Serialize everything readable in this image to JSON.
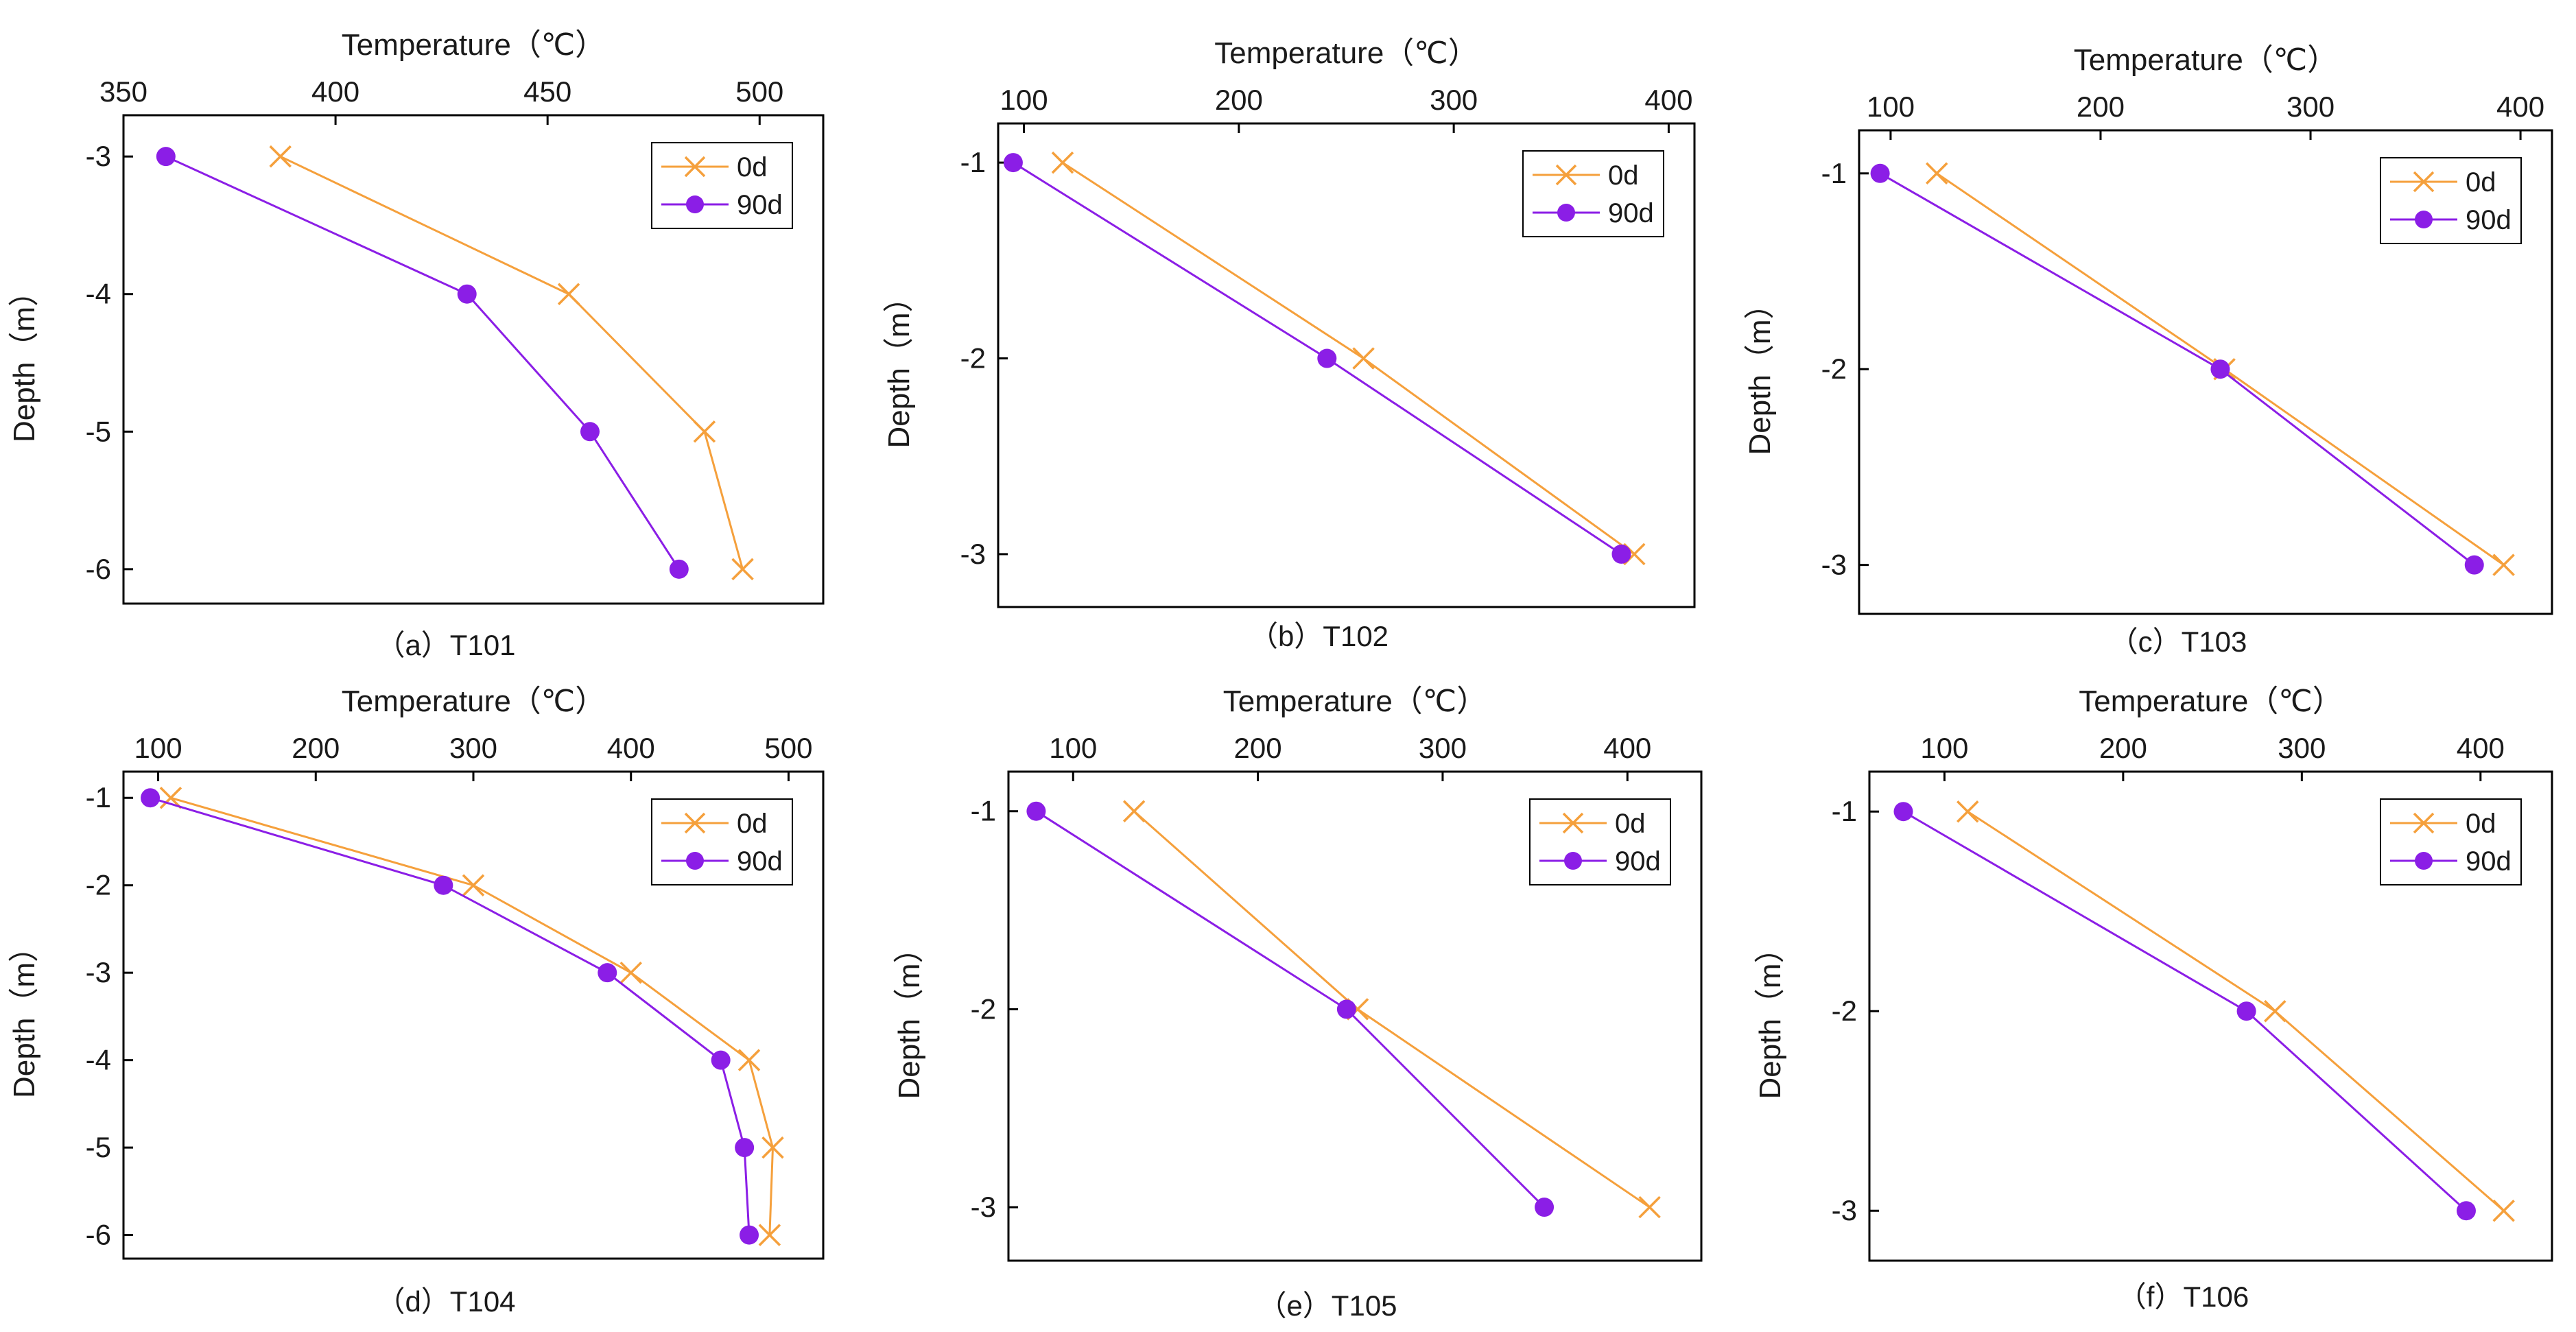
{
  "colors": {
    "s0d": "#f5a03c",
    "s90d": "#8b1ee6",
    "axis": "#000000",
    "text": "#1a1a1a"
  },
  "chart_data": [
    {
      "type": "line",
      "title": "(a) T101",
      "caption": "（a）T101",
      "xlabel": "Temperature（℃）",
      "ylabel": "Depth（m）",
      "xlim": [
        350,
        515
      ],
      "ylim": [
        -6.25,
        -2.7
      ],
      "xticks": [
        350,
        400,
        450,
        500
      ],
      "yticks": [
        -3,
        -4,
        -5,
        -6
      ],
      "legend_position": "top-right",
      "series": [
        {
          "name": "0d",
          "marker": "x",
          "points": [
            [
              387,
              -3
            ],
            [
              455,
              -4
            ],
            [
              487,
              -5
            ],
            [
              496,
              -6
            ]
          ]
        },
        {
          "name": "90d",
          "marker": "circle",
          "points": [
            [
              360,
              -3
            ],
            [
              431,
              -4
            ],
            [
              460,
              -5
            ],
            [
              481,
              -6
            ]
          ]
        }
      ]
    },
    {
      "type": "line",
      "title": "(b) T102",
      "caption": "（b）T102",
      "xlabel": "Temperature（℃）",
      "ylabel": "Depth（m）",
      "xlim": [
        88,
        412
      ],
      "ylim": [
        -3.27,
        -0.8
      ],
      "xticks": [
        100,
        200,
        300,
        400
      ],
      "yticks": [
        -1,
        -2,
        -3
      ],
      "legend_position": "top-right",
      "series": [
        {
          "name": "0d",
          "marker": "x",
          "points": [
            [
              118,
              -1
            ],
            [
              258,
              -2
            ],
            [
              384,
              -3
            ]
          ]
        },
        {
          "name": "90d",
          "marker": "circle",
          "points": [
            [
              95,
              -1
            ],
            [
              241,
              -2
            ],
            [
              378,
              -3
            ]
          ]
        }
      ]
    },
    {
      "type": "line",
      "title": "(c) T103",
      "caption": "（c）T103",
      "xlabel": "Temperature（℃）",
      "ylabel": "Depth（m）",
      "xlim": [
        85,
        415
      ],
      "ylim": [
        -3.25,
        -0.78
      ],
      "xticks": [
        100,
        200,
        300,
        400
      ],
      "yticks": [
        -1,
        -2,
        -3
      ],
      "legend_position": "top-right",
      "series": [
        {
          "name": "0d",
          "marker": "x",
          "points": [
            [
              122,
              -1
            ],
            [
              259,
              -2
            ],
            [
              392,
              -3
            ]
          ]
        },
        {
          "name": "90d",
          "marker": "circle",
          "points": [
            [
              95,
              -1
            ],
            [
              257,
              -2
            ],
            [
              378,
              -3
            ]
          ]
        }
      ]
    },
    {
      "type": "line",
      "title": "(d) T104",
      "caption": "（d）T104",
      "xlabel": "Temperature（℃）",
      "ylabel": "Depth（m）",
      "xlim": [
        78,
        522
      ],
      "ylim": [
        -6.27,
        -0.7
      ],
      "xticks": [
        100,
        200,
        300,
        400,
        500
      ],
      "yticks": [
        -1,
        -2,
        -3,
        -4,
        -5,
        -6
      ],
      "legend_position": "top-right",
      "series": [
        {
          "name": "0d",
          "marker": "x",
          "points": [
            [
              108,
              -1
            ],
            [
              300,
              -2
            ],
            [
              400,
              -3
            ],
            [
              475,
              -4
            ],
            [
              490,
              -5
            ],
            [
              488,
              -6
            ]
          ]
        },
        {
          "name": "90d",
          "marker": "circle",
          "points": [
            [
              95,
              -1
            ],
            [
              281,
              -2
            ],
            [
              385,
              -3
            ],
            [
              457,
              -4
            ],
            [
              472,
              -5
            ],
            [
              475,
              -6
            ]
          ]
        }
      ]
    },
    {
      "type": "line",
      "title": "(e) T105",
      "caption": "（e）T105",
      "xlabel": "Temperature（℃）",
      "ylabel": "Depth（m）",
      "xlim": [
        65,
        440
      ],
      "ylim": [
        -3.27,
        -0.8
      ],
      "xticks": [
        100,
        200,
        300,
        400
      ],
      "yticks": [
        -1,
        -2,
        -3
      ],
      "legend_position": "top-right",
      "series": [
        {
          "name": "0d",
          "marker": "x",
          "points": [
            [
              133,
              -1
            ],
            [
              254,
              -2
            ],
            [
              412,
              -3
            ]
          ]
        },
        {
          "name": "90d",
          "marker": "circle",
          "points": [
            [
              80,
              -1
            ],
            [
              248,
              -2
            ],
            [
              355,
              -3
            ]
          ]
        }
      ]
    },
    {
      "type": "line",
      "title": "(f) T106",
      "caption": "（f）T106",
      "xlabel": "Temperature（℃）",
      "ylabel": "Depth（m）",
      "xlim": [
        58,
        440
      ],
      "ylim": [
        -3.25,
        -0.8
      ],
      "xticks": [
        100,
        200,
        300,
        400
      ],
      "yticks": [
        -1,
        -2,
        -3
      ],
      "legend_position": "top-right",
      "series": [
        {
          "name": "0d",
          "marker": "x",
          "points": [
            [
              113,
              -1
            ],
            [
              285,
              -2
            ],
            [
              413,
              -3
            ]
          ]
        },
        {
          "name": "90d",
          "marker": "circle",
          "points": [
            [
              77,
              -1
            ],
            [
              269,
              -2
            ],
            [
              392,
              -3
            ]
          ]
        }
      ]
    }
  ]
}
